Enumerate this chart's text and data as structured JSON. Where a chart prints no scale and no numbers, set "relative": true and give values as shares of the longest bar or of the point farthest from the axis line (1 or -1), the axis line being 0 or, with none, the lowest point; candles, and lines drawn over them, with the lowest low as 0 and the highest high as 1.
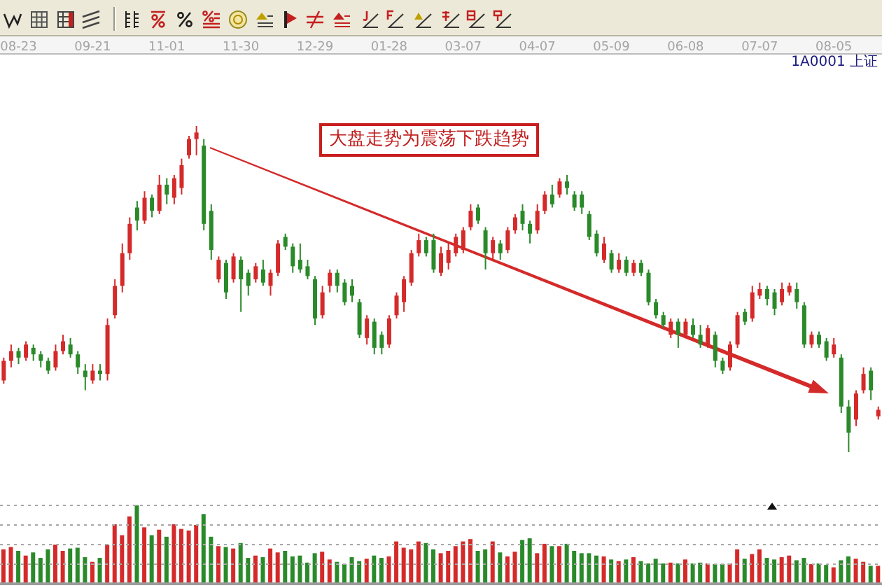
{
  "chart_data": [
    {
      "type": "candlestick",
      "relative": true,
      "tick_labels": "x",
      "categories": [
        null,
        null,
        "08-23",
        null,
        null,
        null,
        null,
        null,
        null,
        null,
        null,
        null,
        "09-21",
        null,
        null,
        null,
        null,
        null,
        null,
        null,
        null,
        null,
        "11-01",
        null,
        null,
        null,
        null,
        null,
        null,
        null,
        null,
        null,
        "11-30",
        null,
        null,
        null,
        null,
        null,
        null,
        null,
        null,
        null,
        "12-29",
        null,
        null,
        null,
        null,
        null,
        null,
        null,
        null,
        null,
        "01-28",
        null,
        null,
        null,
        null,
        null,
        null,
        null,
        null,
        null,
        "03-07",
        null,
        null,
        null,
        null,
        null,
        null,
        null,
        null,
        null,
        "04-07",
        null,
        null,
        null,
        null,
        null,
        null,
        null,
        null,
        null,
        "05-09",
        null,
        null,
        null,
        null,
        null,
        null,
        null,
        null,
        null,
        "06-08",
        null,
        null,
        null,
        null,
        null,
        null,
        null,
        null,
        null,
        "07-07",
        null,
        null,
        null,
        null,
        null,
        null,
        null,
        null,
        null,
        "08-05",
        null,
        null,
        null,
        null,
        null,
        null
      ],
      "ohlc": [
        [
          0.22,
          0.29,
          0.21,
          0.28
        ],
        [
          0.28,
          0.33,
          0.26,
          0.31
        ],
        [
          0.31,
          0.32,
          0.27,
          0.29
        ],
        [
          0.29,
          0.34,
          0.28,
          0.33
        ],
        [
          0.32,
          0.33,
          0.28,
          0.3
        ],
        [
          0.3,
          0.31,
          0.26,
          0.28
        ],
        [
          0.28,
          0.29,
          0.24,
          0.25
        ],
        [
          0.26,
          0.33,
          0.25,
          0.31
        ],
        [
          0.31,
          0.36,
          0.3,
          0.34
        ],
        [
          0.33,
          0.35,
          0.29,
          0.3
        ],
        [
          0.3,
          0.31,
          0.24,
          0.26
        ],
        [
          0.25,
          0.27,
          0.19,
          0.23
        ],
        [
          0.22,
          0.27,
          0.21,
          0.25
        ],
        [
          0.25,
          0.27,
          0.22,
          0.24
        ],
        [
          0.24,
          0.41,
          0.22,
          0.39
        ],
        [
          0.42,
          0.53,
          0.41,
          0.51
        ],
        [
          0.51,
          0.64,
          0.49,
          0.61
        ],
        [
          0.61,
          0.72,
          0.59,
          0.7
        ],
        [
          0.75,
          0.77,
          0.68,
          0.71
        ],
        [
          0.71,
          0.8,
          0.7,
          0.78
        ],
        [
          0.78,
          0.79,
          0.72,
          0.74
        ],
        [
          0.74,
          0.85,
          0.73,
          0.82
        ],
        [
          0.82,
          0.84,
          0.76,
          0.79
        ],
        [
          0.78,
          0.85,
          0.76,
          0.84
        ],
        [
          0.81,
          0.9,
          0.79,
          0.88
        ],
        [
          0.91,
          0.97,
          0.9,
          0.96
        ],
        [
          0.96,
          1.0,
          0.91,
          0.98
        ],
        [
          0.94,
          0.96,
          0.68,
          0.7
        ],
        [
          0.74,
          0.76,
          0.59,
          0.62
        ],
        [
          0.53,
          0.6,
          0.52,
          0.59
        ],
        [
          0.58,
          0.59,
          0.47,
          0.49
        ],
        [
          0.53,
          0.61,
          0.52,
          0.6
        ],
        [
          0.59,
          0.6,
          0.43,
          0.53
        ],
        [
          0.55,
          0.56,
          0.48,
          0.51
        ],
        [
          0.53,
          0.58,
          0.52,
          0.57
        ],
        [
          0.56,
          0.59,
          0.51,
          0.52
        ],
        [
          0.51,
          0.56,
          0.48,
          0.55
        ],
        [
          0.55,
          0.65,
          0.54,
          0.64
        ],
        [
          0.66,
          0.67,
          0.62,
          0.63
        ],
        [
          0.63,
          0.64,
          0.55,
          0.57
        ],
        [
          0.59,
          0.64,
          0.55,
          0.56
        ],
        [
          0.57,
          0.59,
          0.53,
          0.54
        ],
        [
          0.53,
          0.54,
          0.39,
          0.41
        ],
        [
          0.42,
          0.51,
          0.41,
          0.49
        ],
        [
          0.51,
          0.56,
          0.49,
          0.55
        ],
        [
          0.55,
          0.56,
          0.49,
          0.51
        ],
        [
          0.52,
          0.53,
          0.45,
          0.46
        ],
        [
          0.51,
          0.53,
          0.46,
          0.48
        ],
        [
          0.46,
          0.47,
          0.35,
          0.36
        ],
        [
          0.35,
          0.42,
          0.33,
          0.41
        ],
        [
          0.4,
          0.41,
          0.3,
          0.32
        ],
        [
          0.36,
          0.37,
          0.3,
          0.32
        ],
        [
          0.33,
          0.42,
          0.32,
          0.41
        ],
        [
          0.42,
          0.49,
          0.41,
          0.48
        ],
        [
          0.46,
          0.54,
          0.43,
          0.53
        ],
        [
          0.52,
          0.62,
          0.51,
          0.61
        ],
        [
          0.61,
          0.67,
          0.6,
          0.65
        ],
        [
          0.65,
          0.66,
          0.6,
          0.61
        ],
        [
          0.65,
          0.67,
          0.55,
          0.56
        ],
        [
          0.55,
          0.63,
          0.54,
          0.61
        ],
        [
          0.58,
          0.64,
          0.56,
          0.62
        ],
        [
          0.61,
          0.67,
          0.6,
          0.66
        ],
        [
          0.62,
          0.69,
          0.61,
          0.68
        ],
        [
          0.69,
          0.76,
          0.68,
          0.74
        ],
        [
          0.75,
          0.76,
          0.7,
          0.71
        ],
        [
          0.68,
          0.69,
          0.56,
          0.61
        ],
        [
          0.61,
          0.66,
          0.59,
          0.65
        ],
        [
          0.64,
          0.65,
          0.59,
          0.61
        ],
        [
          0.62,
          0.69,
          0.61,
          0.68
        ],
        [
          0.68,
          0.73,
          0.67,
          0.72
        ],
        [
          0.74,
          0.76,
          0.68,
          0.7
        ],
        [
          0.7,
          0.71,
          0.64,
          0.67
        ],
        [
          0.68,
          0.76,
          0.67,
          0.74
        ],
        [
          0.74,
          0.8,
          0.73,
          0.79
        ],
        [
          0.79,
          0.82,
          0.75,
          0.76
        ],
        [
          0.79,
          0.84,
          0.78,
          0.83
        ],
        [
          0.83,
          0.85,
          0.79,
          0.81
        ],
        [
          0.79,
          0.8,
          0.74,
          0.75
        ],
        [
          0.79,
          0.8,
          0.73,
          0.75
        ],
        [
          0.73,
          0.74,
          0.65,
          0.66
        ],
        [
          0.67,
          0.68,
          0.6,
          0.61
        ],
        [
          0.59,
          0.66,
          0.58,
          0.64
        ],
        [
          0.61,
          0.62,
          0.55,
          0.56
        ],
        [
          0.56,
          0.61,
          0.55,
          0.59
        ],
        [
          0.59,
          0.6,
          0.54,
          0.55
        ],
        [
          0.55,
          0.59,
          0.54,
          0.58
        ],
        [
          0.58,
          0.59,
          0.54,
          0.55
        ],
        [
          0.55,
          0.56,
          0.45,
          0.46
        ],
        [
          0.46,
          0.47,
          0.41,
          0.42
        ],
        [
          0.42,
          0.43,
          0.38,
          0.39
        ],
        [
          0.36,
          0.41,
          0.35,
          0.4
        ],
        [
          0.4,
          0.41,
          0.32,
          0.36
        ],
        [
          0.36,
          0.41,
          0.35,
          0.4
        ],
        [
          0.39,
          0.41,
          0.35,
          0.36
        ],
        [
          0.36,
          0.39,
          0.32,
          0.33
        ],
        [
          0.33,
          0.39,
          0.32,
          0.38
        ],
        [
          0.36,
          0.37,
          0.26,
          0.28
        ],
        [
          0.28,
          0.29,
          0.24,
          0.25
        ],
        [
          0.26,
          0.34,
          0.25,
          0.33
        ],
        [
          0.33,
          0.43,
          0.32,
          0.42
        ],
        [
          0.43,
          0.44,
          0.39,
          0.4
        ],
        [
          0.41,
          0.51,
          0.4,
          0.49
        ],
        [
          0.48,
          0.52,
          0.47,
          0.5
        ],
        [
          0.5,
          0.51,
          0.45,
          0.47
        ],
        [
          0.49,
          0.5,
          0.42,
          0.44
        ],
        [
          0.46,
          0.52,
          0.45,
          0.5
        ],
        [
          0.49,
          0.52,
          0.48,
          0.51
        ],
        [
          0.5,
          0.52,
          0.44,
          0.46
        ],
        [
          0.45,
          0.46,
          0.32,
          0.33
        ],
        [
          0.33,
          0.37,
          0.32,
          0.36
        ],
        [
          0.36,
          0.37,
          0.32,
          0.33
        ],
        [
          0.34,
          0.35,
          0.28,
          0.29
        ],
        [
          0.3,
          0.35,
          0.29,
          0.33
        ],
        [
          0.29,
          0.3,
          0.12,
          0.14
        ],
        [
          0.14,
          0.16,
          0.0,
          0.06
        ],
        [
          0.1,
          0.19,
          0.08,
          0.18
        ],
        [
          0.19,
          0.26,
          0.18,
          0.24
        ],
        [
          0.25,
          0.26,
          0.16,
          0.19
        ],
        [
          0.11,
          0.14,
          0.1,
          0.13
        ]
      ],
      "colors": [
        "#d42a2a",
        "#d42a2a",
        "#2a8a2a",
        "#d42a2a",
        "#2a8a2a",
        "#2a8a2a",
        "#2a8a2a",
        "#d42a2a",
        "#d42a2a",
        "#2a8a2a",
        "#2a8a2a",
        "#2a8a2a",
        "#d42a2a",
        "#2a8a2a",
        "#d42a2a",
        "#d42a2a",
        "#d42a2a",
        "#d42a2a",
        "#2a8a2a",
        "#d42a2a",
        "#2a8a2a",
        "#d42a2a",
        "#2a8a2a",
        "#d42a2a",
        "#d42a2a",
        "#d42a2a",
        "#d42a2a",
        "#2a8a2a",
        "#2a8a2a",
        "#d42a2a",
        "#2a8a2a",
        "#d42a2a",
        "#2a8a2a",
        "#2a8a2a",
        "#d42a2a",
        "#2a8a2a",
        "#d42a2a",
        "#d42a2a",
        "#2a8a2a",
        "#2a8a2a",
        "#2a8a2a",
        "#2a8a2a",
        "#2a8a2a",
        "#d42a2a",
        "#d42a2a",
        "#2a8a2a",
        "#2a8a2a",
        "#2a8a2a",
        "#2a8a2a",
        "#d42a2a",
        "#2a8a2a",
        "#2a8a2a",
        "#d42a2a",
        "#d42a2a",
        "#d42a2a",
        "#d42a2a",
        "#d42a2a",
        "#2a8a2a",
        "#2a8a2a",
        "#d42a2a",
        "#d42a2a",
        "#d42a2a",
        "#d42a2a",
        "#d42a2a",
        "#2a8a2a",
        "#2a8a2a",
        "#d42a2a",
        "#2a8a2a",
        "#d42a2a",
        "#d42a2a",
        "#2a8a2a",
        "#2a8a2a",
        "#d42a2a",
        "#d42a2a",
        "#2a8a2a",
        "#d42a2a",
        "#2a8a2a",
        "#2a8a2a",
        "#2a8a2a",
        "#2a8a2a",
        "#2a8a2a",
        "#d42a2a",
        "#2a8a2a",
        "#d42a2a",
        "#2a8a2a",
        "#d42a2a",
        "#2a8a2a",
        "#2a8a2a",
        "#2a8a2a",
        "#2a8a2a",
        "#d42a2a",
        "#2a8a2a",
        "#d42a2a",
        "#2a8a2a",
        "#2a8a2a",
        "#d42a2a",
        "#2a8a2a",
        "#2a8a2a",
        "#d42a2a",
        "#d42a2a",
        "#2a8a2a",
        "#d42a2a",
        "#d42a2a",
        "#2a8a2a",
        "#2a8a2a",
        "#d42a2a",
        "#d42a2a",
        "#2a8a2a",
        "#2a8a2a",
        "#d42a2a",
        "#2a8a2a",
        "#2a8a2a",
        "#d42a2a",
        "#2a8a2a",
        "#2a8a2a",
        "#d42a2a",
        "#d42a2a",
        "#2a8a2a",
        "#d42a2a"
      ],
      "annotations": [
        "大盘走势为震荡下跌趋势",
        "1A0001 上证"
      ]
    },
    {
      "type": "bar",
      "relative": true,
      "tick_labels": false,
      "categories": [
        null,
        null,
        null,
        null,
        null,
        null,
        null,
        null,
        null,
        null,
        null,
        null,
        null,
        null,
        null,
        null,
        null,
        null,
        null,
        null,
        null,
        null,
        null,
        null,
        null,
        null,
        null,
        null,
        null,
        null,
        null,
        null,
        null,
        null,
        null,
        null,
        null,
        null,
        null,
        null,
        null,
        null,
        null,
        null,
        null,
        null,
        null,
        null,
        null,
        null,
        null,
        null,
        null,
        null,
        null,
        null,
        null,
        null,
        null,
        null,
        null,
        null,
        null,
        null,
        null,
        null,
        null,
        null,
        null,
        null,
        null,
        null,
        null,
        null,
        null,
        null,
        null,
        null,
        null,
        null,
        null,
        null,
        null,
        null,
        null,
        null,
        null,
        null,
        null,
        null,
        null,
        null,
        null,
        null,
        null,
        null,
        null,
        null,
        null,
        null,
        null,
        null,
        null,
        null,
        null,
        null,
        null,
        null,
        null,
        null,
        null,
        null,
        null,
        null,
        null,
        null,
        null,
        null,
        null
      ],
      "values": [
        0.44,
        0.47,
        0.42,
        0.36,
        0.4,
        0.33,
        0.44,
        0.5,
        0.42,
        0.45,
        0.46,
        0.34,
        0.28,
        0.33,
        0.5,
        0.76,
        0.62,
        0.86,
        1.0,
        0.72,
        0.62,
        0.69,
        0.6,
        0.76,
        0.7,
        0.68,
        0.75,
        0.89,
        0.6,
        0.48,
        0.47,
        0.45,
        0.52,
        0.33,
        0.36,
        0.34,
        0.45,
        0.4,
        0.42,
        0.35,
        0.36,
        0.27,
        0.39,
        0.41,
        0.31,
        0.28,
        0.25,
        0.34,
        0.29,
        0.32,
        0.36,
        0.33,
        0.35,
        0.54,
        0.46,
        0.44,
        0.54,
        0.52,
        0.44,
        0.39,
        0.42,
        0.48,
        0.54,
        0.57,
        0.42,
        0.44,
        0.54,
        0.4,
        0.35,
        0.41,
        0.56,
        0.58,
        0.39,
        0.51,
        0.48,
        0.48,
        0.51,
        0.42,
        0.39,
        0.39,
        0.36,
        0.35,
        0.31,
        0.29,
        0.31,
        0.34,
        0.29,
        0.26,
        0.32,
        0.26,
        0.27,
        0.26,
        0.31,
        0.26,
        0.27,
        0.26,
        0.25,
        0.25,
        0.26,
        0.44,
        0.32,
        0.38,
        0.44,
        0.33,
        0.31,
        0.34,
        0.36,
        0.3,
        0.33,
        0.25,
        0.26,
        0.24,
        0.21,
        0.3,
        0.35,
        0.32,
        0.28,
        0.23,
        0.23
      ],
      "colors": [
        "#d42a2a",
        "#d42a2a",
        "#2a8a2a",
        "#d42a2a",
        "#2a8a2a",
        "#2a8a2a",
        "#2a8a2a",
        "#d42a2a",
        "#d42a2a",
        "#2a8a2a",
        "#2a8a2a",
        "#2a8a2a",
        "#d42a2a",
        "#2a8a2a",
        "#d42a2a",
        "#d42a2a",
        "#d42a2a",
        "#d42a2a",
        "#2a8a2a",
        "#d42a2a",
        "#2a8a2a",
        "#d42a2a",
        "#2a8a2a",
        "#d42a2a",
        "#d42a2a",
        "#d42a2a",
        "#d42a2a",
        "#2a8a2a",
        "#2a8a2a",
        "#d42a2a",
        "#2a8a2a",
        "#d42a2a",
        "#2a8a2a",
        "#2a8a2a",
        "#d42a2a",
        "#2a8a2a",
        "#d42a2a",
        "#d42a2a",
        "#2a8a2a",
        "#2a8a2a",
        "#2a8a2a",
        "#2a8a2a",
        "#2a8a2a",
        "#d42a2a",
        "#d42a2a",
        "#2a8a2a",
        "#2a8a2a",
        "#2a8a2a",
        "#2a8a2a",
        "#d42a2a",
        "#2a8a2a",
        "#2a8a2a",
        "#d42a2a",
        "#d42a2a",
        "#d42a2a",
        "#d42a2a",
        "#d42a2a",
        "#2a8a2a",
        "#2a8a2a",
        "#d42a2a",
        "#d42a2a",
        "#d42a2a",
        "#d42a2a",
        "#d42a2a",
        "#2a8a2a",
        "#2a8a2a",
        "#d42a2a",
        "#2a8a2a",
        "#d42a2a",
        "#d42a2a",
        "#2a8a2a",
        "#2a8a2a",
        "#d42a2a",
        "#d42a2a",
        "#2a8a2a",
        "#d42a2a",
        "#2a8a2a",
        "#2a8a2a",
        "#2a8a2a",
        "#2a8a2a",
        "#2a8a2a",
        "#d42a2a",
        "#2a8a2a",
        "#d42a2a",
        "#2a8a2a",
        "#d42a2a",
        "#2a8a2a",
        "#2a8a2a",
        "#2a8a2a",
        "#2a8a2a",
        "#d42a2a",
        "#2a8a2a",
        "#d42a2a",
        "#2a8a2a",
        "#2a8a2a",
        "#d42a2a",
        "#2a8a2a",
        "#2a8a2a",
        "#d42a2a",
        "#d42a2a",
        "#2a8a2a",
        "#d42a2a",
        "#d42a2a",
        "#2a8a2a",
        "#2a8a2a",
        "#d42a2a",
        "#d42a2a",
        "#2a8a2a",
        "#2a8a2a",
        "#d42a2a",
        "#2a8a2a",
        "#2a8a2a",
        "#d42a2a",
        "#2a8a2a",
        "#2a8a2a",
        "#d42a2a",
        "#d42a2a",
        "#2a8a2a",
        "#d42a2a"
      ],
      "ref_lines": [
        {
          "axis": "y",
          "value": 0.25,
          "color": "#a8a8a8",
          "line_style": "dotted"
        },
        {
          "axis": "y",
          "value": 0.5,
          "color": "#a8a8a8",
          "line_style": "dotted"
        },
        {
          "axis": "y",
          "value": 0.75,
          "color": "#a8a8a8",
          "line_style": "dotted"
        },
        {
          "axis": "y",
          "value": 1,
          "color": "#a8a8a8",
          "line_style": "dotted"
        }
      ]
    }
  ]
}
